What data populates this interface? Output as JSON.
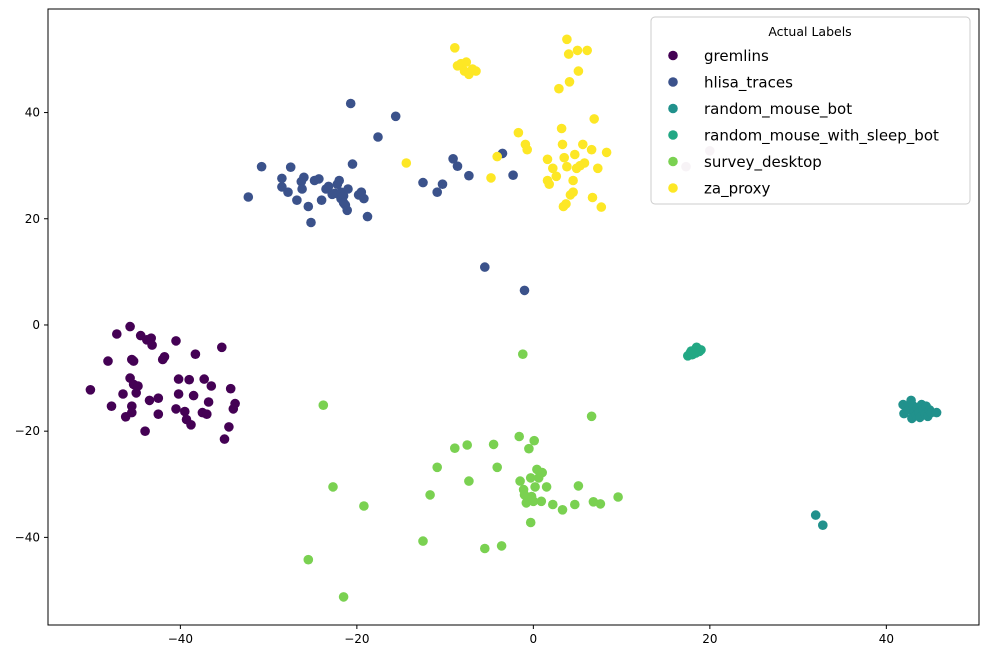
{
  "chart_data": {
    "type": "scatter",
    "title": "",
    "xlabel": "",
    "ylabel": "",
    "xlim": [
      -55,
      50.5
    ],
    "ylim": [
      -56.5,
      59.5
    ],
    "xticks": [
      -40,
      -20,
      0,
      20,
      40
    ],
    "yticks": [
      -40,
      -20,
      0,
      20,
      40
    ],
    "xtick_labels": [
      "−40",
      "−20",
      "0",
      "20",
      "40"
    ],
    "ytick_labels": [
      "−40",
      "−20",
      "0",
      "20",
      "40"
    ],
    "grid": false,
    "legend": {
      "title": "Actual Labels",
      "position": "top-right"
    },
    "series": [
      {
        "name": "gremlins",
        "color": "#440154",
        "points": [
          [
            -50.2,
            -12.2
          ],
          [
            -48.2,
            -6.8
          ],
          [
            -47.8,
            -15.3
          ],
          [
            -47.2,
            -1.7
          ],
          [
            -46.5,
            -13.0
          ],
          [
            -46.2,
            -17.3
          ],
          [
            -45.7,
            -0.3
          ],
          [
            -45.7,
            -10.0
          ],
          [
            -45.5,
            -6.5
          ],
          [
            -45.5,
            -15.3
          ],
          [
            -45.5,
            -16.5
          ],
          [
            -45.3,
            -11.2
          ],
          [
            -45.3,
            -6.8
          ],
          [
            -45.0,
            -12.8
          ],
          [
            -44.8,
            -11.5
          ],
          [
            -44.5,
            -2.0
          ],
          [
            -44.0,
            -20.0
          ],
          [
            -43.8,
            -2.8
          ],
          [
            -43.5,
            -14.2
          ],
          [
            -43.3,
            -2.5
          ],
          [
            -43.2,
            -3.8
          ],
          [
            -42.5,
            -13.8
          ],
          [
            -42.5,
            -16.8
          ],
          [
            -42.0,
            -6.5
          ],
          [
            -41.8,
            -6.0
          ],
          [
            -40.5,
            -3.0
          ],
          [
            -40.5,
            -15.8
          ],
          [
            -40.2,
            -13.0
          ],
          [
            -40.2,
            -10.2
          ],
          [
            -39.5,
            -16.3
          ],
          [
            -39.3,
            -17.8
          ],
          [
            -39.0,
            -10.3
          ],
          [
            -38.8,
            -18.8
          ],
          [
            -38.5,
            -13.3
          ],
          [
            -38.3,
            -5.5
          ],
          [
            -37.5,
            -16.5
          ],
          [
            -37.3,
            -10.2
          ],
          [
            -37.0,
            -16.8
          ],
          [
            -36.8,
            -14.5
          ],
          [
            -36.5,
            -11.5
          ],
          [
            -35.3,
            -4.2
          ],
          [
            -35.0,
            -21.5
          ],
          [
            -34.5,
            -19.2
          ],
          [
            -34.3,
            -12.0
          ],
          [
            -34.0,
            -15.8
          ],
          [
            -33.8,
            -14.8
          ]
        ]
      },
      {
        "name": "hlisa_traces",
        "color": "#3b528b",
        "points": [
          [
            -32.3,
            24.1
          ],
          [
            -30.8,
            29.8
          ],
          [
            -28.5,
            26.0
          ],
          [
            -28.5,
            27.6
          ],
          [
            -27.8,
            25.0
          ],
          [
            -27.5,
            29.7
          ],
          [
            -26.8,
            23.5
          ],
          [
            -26.3,
            27.0
          ],
          [
            -26.2,
            25.6
          ],
          [
            -26.0,
            27.8
          ],
          [
            -25.5,
            22.3
          ],
          [
            -25.2,
            19.3
          ],
          [
            -24.8,
            27.2
          ],
          [
            -24.3,
            27.5
          ],
          [
            -24.0,
            23.5
          ],
          [
            -23.5,
            25.6
          ],
          [
            -23.2,
            26.1
          ],
          [
            -22.8,
            24.6
          ],
          [
            -22.5,
            24.8
          ],
          [
            -22.2,
            26.5
          ],
          [
            -22.0,
            27.2
          ],
          [
            -21.8,
            23.8
          ],
          [
            -21.8,
            25.0
          ],
          [
            -21.5,
            24.3
          ],
          [
            -21.5,
            23.0
          ],
          [
            -21.3,
            22.6
          ],
          [
            -21.1,
            21.6
          ],
          [
            -21.0,
            25.6
          ],
          [
            -20.7,
            41.7
          ],
          [
            -20.5,
            30.3
          ],
          [
            -19.8,
            24.5
          ],
          [
            -19.5,
            25.0
          ],
          [
            -19.2,
            23.8
          ],
          [
            -18.8,
            20.4
          ],
          [
            -17.6,
            35.4
          ],
          [
            -15.6,
            39.3
          ],
          [
            -12.5,
            26.8
          ],
          [
            -10.9,
            25.0
          ],
          [
            -10.3,
            26.5
          ],
          [
            -9.1,
            31.3
          ],
          [
            -8.6,
            29.9
          ],
          [
            -7.3,
            28.1
          ],
          [
            -3.5,
            32.3
          ],
          [
            -2.3,
            28.2
          ],
          [
            -5.5,
            10.9
          ],
          [
            -1.0,
            6.5
          ]
        ]
      },
      {
        "name": "random_mouse_bot",
        "color": "#21918c",
        "points": [
          [
            32.0,
            -35.8
          ],
          [
            32.8,
            -37.7
          ],
          [
            41.9,
            -15.0
          ],
          [
            42.0,
            -16.7
          ],
          [
            42.3,
            -15.5
          ],
          [
            42.5,
            -16.0
          ],
          [
            42.8,
            -14.2
          ],
          [
            42.9,
            -17.6
          ],
          [
            43.0,
            -15.2
          ],
          [
            43.2,
            -16.3
          ],
          [
            43.4,
            -17.0
          ],
          [
            43.5,
            -15.6
          ],
          [
            43.7,
            -16.5
          ],
          [
            43.8,
            -17.4
          ],
          [
            44.0,
            -15.0
          ],
          [
            44.2,
            -15.9
          ],
          [
            44.4,
            -16.8
          ],
          [
            44.5,
            -15.3
          ],
          [
            44.7,
            -17.2
          ],
          [
            44.9,
            -16.0
          ],
          [
            45.1,
            -16.5
          ],
          [
            45.7,
            -16.5
          ]
        ]
      },
      {
        "name": "random_mouse_with_sleep_bot",
        "color": "#22a884",
        "points": [
          [
            17.5,
            -5.8
          ],
          [
            17.8,
            -5.2
          ],
          [
            18.0,
            -5.6
          ],
          [
            18.2,
            -4.8
          ],
          [
            18.4,
            -5.3
          ],
          [
            18.6,
            -4.5
          ],
          [
            18.8,
            -5.0
          ],
          [
            19.0,
            -4.7
          ],
          [
            17.9,
            -4.9
          ],
          [
            18.5,
            -4.2
          ]
        ]
      },
      {
        "name": "survey_desktop",
        "color": "#7ad151",
        "points": [
          [
            -25.5,
            -44.2
          ],
          [
            -23.8,
            -15.1
          ],
          [
            -22.7,
            -30.5
          ],
          [
            -21.5,
            -51.2
          ],
          [
            -19.2,
            -34.1
          ],
          [
            -12.5,
            -40.7
          ],
          [
            -11.7,
            -32.0
          ],
          [
            -10.9,
            -26.8
          ],
          [
            -8.9,
            -23.2
          ],
          [
            -7.5,
            -22.6
          ],
          [
            -7.3,
            -29.4
          ],
          [
            -5.5,
            -42.1
          ],
          [
            -4.5,
            -22.5
          ],
          [
            -4.1,
            -26.8
          ],
          [
            -3.6,
            -41.6
          ],
          [
            -1.6,
            -21.0
          ],
          [
            -1.5,
            -29.4
          ],
          [
            -1.2,
            -5.5
          ],
          [
            -1.1,
            -31.0
          ],
          [
            -1.0,
            -32.0
          ],
          [
            -0.8,
            -33.5
          ],
          [
            -0.5,
            -23.3
          ],
          [
            -0.3,
            -37.2
          ],
          [
            -0.3,
            -28.8
          ],
          [
            -0.2,
            -32.3
          ],
          [
            0.0,
            -33.2
          ],
          [
            0.1,
            -21.8
          ],
          [
            0.2,
            -30.5
          ],
          [
            0.4,
            -27.2
          ],
          [
            0.6,
            -28.8
          ],
          [
            0.9,
            -33.2
          ],
          [
            1.0,
            -27.8
          ],
          [
            1.5,
            -30.5
          ],
          [
            2.2,
            -33.8
          ],
          [
            3.3,
            -34.8
          ],
          [
            4.7,
            -33.8
          ],
          [
            5.1,
            -30.3
          ],
          [
            6.6,
            -17.2
          ],
          [
            6.8,
            -33.3
          ],
          [
            7.6,
            -33.7
          ],
          [
            9.6,
            -32.4
          ]
        ]
      },
      {
        "name": "za_proxy",
        "color": "#fde725",
        "points": [
          [
            -14.4,
            30.5
          ],
          [
            -8.9,
            52.2
          ],
          [
            -8.6,
            48.8
          ],
          [
            -8.2,
            49.2
          ],
          [
            -7.8,
            47.8
          ],
          [
            -7.6,
            49.5
          ],
          [
            -7.3,
            47.2
          ],
          [
            -6.9,
            48.2
          ],
          [
            -6.5,
            47.8
          ],
          [
            -4.8,
            27.7
          ],
          [
            -4.1,
            31.7
          ],
          [
            -1.7,
            36.2
          ],
          [
            -0.9,
            34.0
          ],
          [
            -0.7,
            33.0
          ],
          [
            1.6,
            27.2
          ],
          [
            1.6,
            31.2
          ],
          [
            1.8,
            26.5
          ],
          [
            2.2,
            29.5
          ],
          [
            2.6,
            28.0
          ],
          [
            2.9,
            44.5
          ],
          [
            3.2,
            37.0
          ],
          [
            3.3,
            34.0
          ],
          [
            3.4,
            22.3
          ],
          [
            3.5,
            31.5
          ],
          [
            3.7,
            22.8
          ],
          [
            3.8,
            29.8
          ],
          [
            3.8,
            53.8
          ],
          [
            4.0,
            51.0
          ],
          [
            4.1,
            45.8
          ],
          [
            4.2,
            24.5
          ],
          [
            4.5,
            27.2
          ],
          [
            4.5,
            25.0
          ],
          [
            4.7,
            32.1
          ],
          [
            4.9,
            29.5
          ],
          [
            5.0,
            51.7
          ],
          [
            5.1,
            47.8
          ],
          [
            5.3,
            30.0
          ],
          [
            5.6,
            34.0
          ],
          [
            5.8,
            30.5
          ],
          [
            6.1,
            51.7
          ],
          [
            6.6,
            33.0
          ],
          [
            6.7,
            24.0
          ],
          [
            6.9,
            38.8
          ],
          [
            7.3,
            29.5
          ],
          [
            7.7,
            22.2
          ],
          [
            8.3,
            32.5
          ]
        ]
      },
      {
        "name": "",
        "color": "#d8c2d2",
        "points": [
          [
            17.3,
            29.8
          ],
          [
            20.0,
            32.8
          ]
        ]
      }
    ]
  }
}
